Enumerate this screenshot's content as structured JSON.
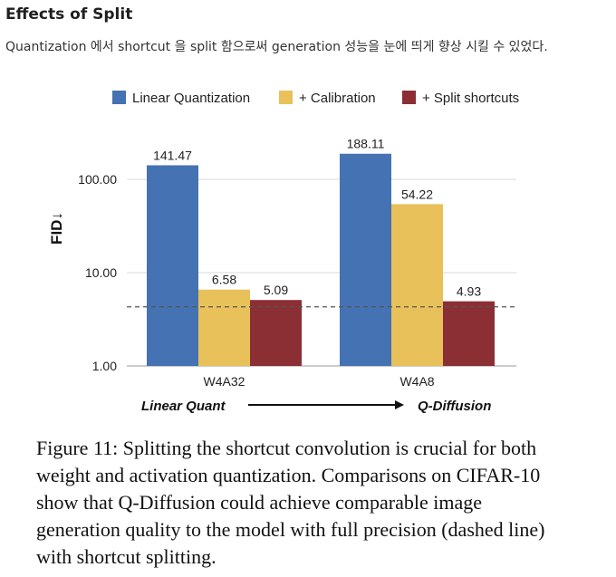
{
  "header": {
    "title": "Effects of Split",
    "subtitle": "Quantization 에서 shortcut 을 split 함으로써 generation 성능을 눈에 띄게 향상 시킬 수 있었다."
  },
  "chart_data": {
    "type": "bar",
    "yscale": "log",
    "ylabel": "FID↓",
    "ylim": [
      1,
      200
    ],
    "yticks": [
      "1.00",
      "10.00",
      "100.00"
    ],
    "categories": [
      "W4A32",
      "W4A8"
    ],
    "series": [
      {
        "name": "Linear Quantization",
        "color": "#4572b2",
        "values": [
          141.47,
          188.11
        ],
        "labels": [
          "141.47",
          "188.11"
        ]
      },
      {
        "name": "+ Calibration",
        "color": "#e8c15a",
        "values": [
          6.58,
          54.22
        ],
        "labels": [
          "6.58",
          "54.22"
        ]
      },
      {
        "name": "+ Split shortcuts",
        "color": "#8b2f35",
        "values": [
          5.09,
          4.93
        ],
        "labels": [
          "5.09",
          "4.93"
        ]
      }
    ],
    "reference_line": {
      "value": 4.3,
      "style": "dashed"
    },
    "annotation": {
      "left": "Linear Quant",
      "right": "Q-Diffusion"
    }
  },
  "caption": "Figure 11: Splitting the shortcut convolution is crucial for both weight and activation quantization. Comparisons on CIFAR-10 show that Q-Diffusion could achieve comparable image generation quality to the model with full precision (dashed line) with shortcut splitting."
}
